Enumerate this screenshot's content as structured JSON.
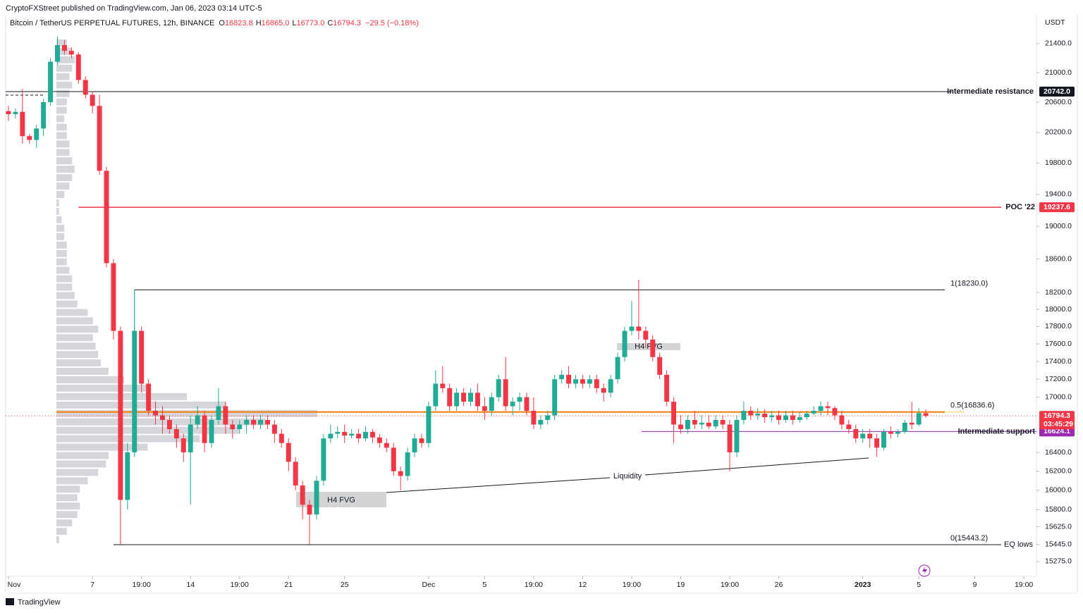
{
  "header": {
    "publisher": "CryptoFXStreet published on TradingView.com, Jan 06, 2023 03:14 UTC-5",
    "symbol": "Bitcoin / TetherUS PERPETUAL FUTURES, 12h, BINANCE",
    "ohlc": [
      {
        "k": "O",
        "v": "16823.8"
      },
      {
        "k": "H",
        "v": "16865.0"
      },
      {
        "k": "L",
        "v": "16773.0"
      },
      {
        "k": "C",
        "v": "16794.3"
      }
    ],
    "change": "−29.5 (−0.18%)"
  },
  "footer": {
    "brand": "TradingView"
  },
  "chart_data": {
    "type": "candlestick",
    "y_axis_label": "USDT",
    "log_scale": true,
    "ylim": [
      15128,
      21816
    ],
    "xlim": [
      -0.4,
      146.8
    ],
    "up_color": "#22ab94",
    "down_color": "#f23645",
    "yticks": [
      {
        "value": 21400,
        "label": "21400.0"
      },
      {
        "value": 21000,
        "label": "21000.0"
      },
      {
        "value": 20600,
        "label": "20600.0"
      },
      {
        "value": 20200,
        "label": "20200.0"
      },
      {
        "value": 19800,
        "label": "19800.0"
      },
      {
        "value": 19400,
        "label": "19400.0"
      },
      {
        "value": 19000,
        "label": "19000.0"
      },
      {
        "value": 18600,
        "label": "18600.0"
      },
      {
        "value": 18200,
        "label": "18200.0"
      },
      {
        "value": 18000,
        "label": "18000.0"
      },
      {
        "value": 17800,
        "label": "17800.0"
      },
      {
        "value": 17600,
        "label": "17600.0"
      },
      {
        "value": 17400,
        "label": "17400.0"
      },
      {
        "value": 17200,
        "label": "17200.0"
      },
      {
        "value": 17000,
        "label": "17000.0"
      },
      {
        "value": 16400,
        "label": "16400.0"
      },
      {
        "value": 16200,
        "label": "16200.0"
      },
      {
        "value": 16000,
        "label": "16000.0"
      },
      {
        "value": 15800,
        "label": "15800.0"
      },
      {
        "value": 15625,
        "label": "15625.0"
      },
      {
        "value": 15445,
        "label": "15445.0"
      },
      {
        "value": 15275,
        "label": "15275.0"
      }
    ],
    "xticks": [
      {
        "value": 0,
        "label": "Nov"
      },
      {
        "value": 12,
        "label": "7"
      },
      {
        "value": 19,
        "label": "19:00"
      },
      {
        "value": 26,
        "label": "14"
      },
      {
        "value": 33,
        "label": "19:00"
      },
      {
        "value": 40,
        "label": "21"
      },
      {
        "value": 48,
        "label": "25"
      },
      {
        "value": 60,
        "label": "Dec"
      },
      {
        "value": 68,
        "label": "5"
      },
      {
        "value": 75,
        "label": "19:00"
      },
      {
        "value": 82,
        "label": "12"
      },
      {
        "value": 89,
        "label": "19:00"
      },
      {
        "value": 96,
        "label": "19"
      },
      {
        "value": 103,
        "label": "19:00"
      },
      {
        "value": 110,
        "label": "26"
      },
      {
        "value": 122,
        "label": "2023"
      },
      {
        "value": 130,
        "label": "5"
      },
      {
        "value": 138,
        "label": "9"
      },
      {
        "value": 145,
        "label": "19:00"
      }
    ],
    "open": [
      20480,
      20440,
      20470,
      20150,
      20100,
      20250,
      20600,
      21150,
      21380,
      21300,
      21250,
      20900,
      20700,
      20550,
      19700,
      18550,
      17750,
      15900,
      16400,
      17750,
      17150,
      16850,
      16800,
      16750,
      16650,
      16550,
      16400,
      16700,
      16800,
      16500,
      16750,
      16900,
      16700,
      16650,
      16700,
      16750,
      16700,
      16750,
      16700,
      16600,
      16500,
      16300,
      16050,
      15850,
      15750,
      16100,
      16550,
      16600,
      16620,
      16580,
      16600,
      16550,
      16620,
      16560,
      16500,
      16450,
      16200,
      16150,
      16400,
      16550,
      16500,
      16900,
      17150,
      17100,
      16900,
      17050,
      16950,
      17050,
      16900,
      16850,
      17000,
      17200,
      16900,
      16950,
      17000,
      16850,
      16700,
      16750,
      16800,
      17200,
      17250,
      17150,
      17200,
      17150,
      17200,
      17100,
      17050,
      17200,
      17450,
      17750,
      17800,
      17750,
      17650,
      17450,
      17250,
      16950,
      16700,
      16650,
      16750,
      16700,
      16720,
      16680,
      16750,
      16700,
      16400,
      16750,
      16850,
      16800,
      16820,
      16780,
      16800,
      16750,
      16800,
      16750,
      16780,
      16820,
      16850,
      16900,
      16880,
      16800,
      16700,
      16650,
      16550,
      16600,
      16550,
      16450,
      16620,
      16600,
      16620,
      16720,
      16700,
      16823.8
    ],
    "high": [
      20550,
      20520,
      20780,
      20180,
      20300,
      20650,
      21200,
      21500,
      21450,
      21350,
      21280,
      20950,
      20750,
      20700,
      19750,
      18600,
      17800,
      16500,
      18230,
      17800,
      17200,
      16950,
      16900,
      16800,
      16700,
      16600,
      16800,
      16900,
      16850,
      16800,
      17100,
      16950,
      16750,
      16750,
      16800,
      16800,
      16800,
      16800,
      16750,
      16650,
      16550,
      16350,
      16100,
      15900,
      16150,
      16600,
      16700,
      16680,
      16700,
      16650,
      16650,
      16680,
      16650,
      16600,
      16550,
      16500,
      16250,
      16450,
      16600,
      16600,
      16950,
      17300,
      17350,
      17150,
      17100,
      17100,
      17100,
      17150,
      17000,
      17050,
      17250,
      17450,
      17000,
      17050,
      17050,
      17000,
      16800,
      16850,
      17250,
      17300,
      17350,
      17250,
      17250,
      17250,
      17250,
      17150,
      17250,
      17500,
      17800,
      18100,
      18350,
      17800,
      17700,
      17500,
      17300,
      17000,
      16800,
      16800,
      16850,
      16800,
      16800,
      16800,
      16800,
      16750,
      16800,
      16950,
      16900,
      16880,
      16870,
      16850,
      16850,
      16850,
      16850,
      16830,
      16850,
      16900,
      16950,
      16950,
      16900,
      16850,
      16750,
      16700,
      16650,
      16650,
      16600,
      16650,
      16680,
      16650,
      16750,
      16950,
      16880,
      16865
    ],
    "low": [
      20350,
      20380,
      20050,
      20050,
      20000,
      20150,
      20550,
      21100,
      21250,
      21200,
      20850,
      20650,
      20450,
      19650,
      18500,
      17650,
      15445,
      15800,
      16350,
      17050,
      16800,
      16700,
      16600,
      16600,
      16450,
      16300,
      15850,
      16650,
      16400,
      16450,
      16700,
      16600,
      16550,
      16600,
      16600,
      16650,
      16650,
      16650,
      16500,
      16450,
      16200,
      16000,
      15700,
      15445,
      15700,
      16050,
      16500,
      16550,
      16500,
      16550,
      16500,
      16520,
      16500,
      16450,
      16400,
      16150,
      16000,
      16100,
      16350,
      16450,
      16450,
      16850,
      17050,
      16850,
      16850,
      16900,
      16900,
      16850,
      16750,
      16800,
      16950,
      16850,
      16800,
      16850,
      16800,
      16650,
      16650,
      16700,
      16750,
      17150,
      17100,
      17100,
      17100,
      17100,
      17050,
      16950,
      17000,
      17150,
      17400,
      17700,
      17650,
      17550,
      17400,
      17200,
      16900,
      16500,
      16600,
      16600,
      16650,
      16650,
      16650,
      16650,
      16650,
      16200,
      16350,
      16700,
      16750,
      16750,
      16720,
      16730,
      16700,
      16720,
      16700,
      16720,
      16750,
      16800,
      16800,
      16800,
      16750,
      16650,
      16600,
      16500,
      16500,
      16450,
      16350,
      16420,
      16550,
      16560,
      16600,
      16650,
      16680,
      16773
    ],
    "close": [
      20440,
      20470,
      20150,
      20100,
      20250,
      20600,
      21150,
      21380,
      21300,
      21250,
      20900,
      20700,
      20550,
      19700,
      18550,
      17750,
      15900,
      16400,
      17750,
      17150,
      16850,
      16800,
      16750,
      16650,
      16550,
      16400,
      16700,
      16800,
      16500,
      16750,
      16900,
      16700,
      16650,
      16700,
      16750,
      16700,
      16750,
      16700,
      16600,
      16500,
      16300,
      16050,
      15850,
      15750,
      16100,
      16550,
      16600,
      16620,
      16580,
      16600,
      16550,
      16620,
      16560,
      16500,
      16450,
      16200,
      16150,
      16400,
      16550,
      16500,
      16900,
      17150,
      17100,
      16900,
      17050,
      16950,
      17050,
      16900,
      16850,
      17000,
      17200,
      16900,
      16950,
      17000,
      16850,
      16700,
      16750,
      16800,
      17200,
      17250,
      17150,
      17200,
      17150,
      17200,
      17100,
      17050,
      17200,
      17450,
      17750,
      17800,
      17750,
      17650,
      17450,
      17250,
      16950,
      16700,
      16650,
      16750,
      16700,
      16720,
      16680,
      16750,
      16700,
      16400,
      16750,
      16850,
      16800,
      16820,
      16780,
      16800,
      16750,
      16800,
      16750,
      16780,
      16820,
      16850,
      16900,
      16880,
      16800,
      16700,
      16650,
      16550,
      16600,
      16550,
      16450,
      16620,
      16600,
      16620,
      16720,
      16700,
      16823.8,
      16794.3
    ],
    "volume_profile": [
      4,
      6,
      7,
      6,
      5,
      6,
      5,
      4,
      4,
      3,
      4,
      4,
      5,
      5,
      6,
      7,
      6,
      5,
      3,
      1,
      1,
      2,
      3,
      3,
      4,
      4,
      4,
      5,
      6,
      6,
      7,
      8,
      12,
      14,
      16,
      14,
      15,
      16,
      17,
      20,
      26,
      35,
      50,
      65,
      100,
      80,
      70,
      55,
      35,
      20,
      19,
      16,
      12,
      9,
      8,
      9,
      8,
      6,
      4,
      1
    ],
    "resistance": {
      "label": "Intermediate resistance",
      "value": 20742.0,
      "tag": "20742.0"
    },
    "poc": {
      "label": "POC '22",
      "value": 19237.6,
      "tag": "19237.6"
    },
    "support": {
      "label": "Intermediate support",
      "value": 16624.1,
      "tag": "16624.1"
    },
    "fib": [
      {
        "label": "1(18230.0)",
        "value": 18230.0
      },
      {
        "label": "0.5(16836.6)",
        "value": 16836.6
      },
      {
        "label": "0(15443.2)",
        "value": 15443.2
      }
    ],
    "eq_lows": "EQ lows",
    "last_price": {
      "value": 16794.3,
      "tag": "16794.3",
      "countdown": "03:45:29"
    },
    "annotations": {
      "fvg_low": "H4 FVG",
      "fvg_high": "H4 FVG",
      "liquidity": "Liquidity"
    }
  }
}
